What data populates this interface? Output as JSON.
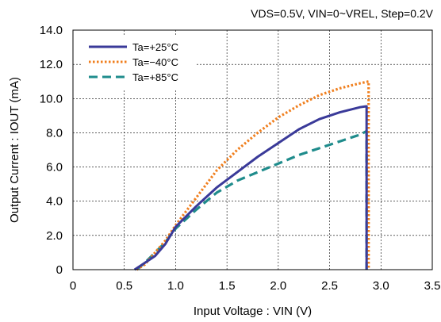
{
  "chart_data": {
    "type": "line",
    "title": "",
    "subtitle": "VDS=0.5V, VIN=0~VREL, Step=0.2V",
    "xlabel": "Input Voltage : VIN (V)",
    "ylabel": "Output Current : IOUT (mA)",
    "xlim": [
      0,
      3.5
    ],
    "ylim": [
      0,
      14.0
    ],
    "x_ticks": [
      "0",
      "0.5",
      "1.0",
      "1.5",
      "2.0",
      "2.5",
      "3.0",
      "3.5"
    ],
    "y_ticks": [
      "0",
      "2.0",
      "4.0",
      "6.0",
      "8.0",
      "10.0",
      "12.0",
      "14.0"
    ],
    "grid": true,
    "legend_position": "top-left",
    "series": [
      {
        "name": "Ta=+25°C",
        "color": "#3a3a99",
        "style": "solid",
        "x": [
          0.6,
          0.65,
          0.8,
          0.9,
          1.0,
          1.2,
          1.4,
          1.6,
          1.8,
          2.0,
          2.2,
          2.4,
          2.6,
          2.8,
          2.86,
          2.86
        ],
        "y": [
          0,
          0.2,
          0.8,
          1.5,
          2.5,
          3.7,
          4.8,
          5.7,
          6.6,
          7.4,
          8.2,
          8.8,
          9.2,
          9.5,
          9.55,
          0
        ]
      },
      {
        "name": "Ta=−40°C",
        "color": "#f07f1e",
        "style": "dotted",
        "x": [
          0.62,
          0.7,
          0.8,
          0.9,
          1.0,
          1.2,
          1.4,
          1.6,
          1.8,
          2.0,
          2.2,
          2.4,
          2.6,
          2.8,
          2.88,
          2.88
        ],
        "y": [
          0,
          0.3,
          1.0,
          1.7,
          2.6,
          4.2,
          5.8,
          7.0,
          8.0,
          8.9,
          9.6,
          10.2,
          10.6,
          10.9,
          11.0,
          0
        ]
      },
      {
        "name": "Ta=+85°C",
        "color": "#1f8c8c",
        "style": "dashed",
        "x": [
          0.62,
          0.7,
          0.8,
          0.9,
          1.0,
          1.2,
          1.4,
          1.6,
          1.8,
          2.0,
          2.2,
          2.4,
          2.6,
          2.8,
          2.86,
          2.86
        ],
        "y": [
          0,
          0.4,
          1.0,
          1.6,
          2.4,
          3.5,
          4.5,
          5.2,
          5.7,
          6.2,
          6.7,
          7.1,
          7.5,
          7.9,
          8.1,
          0
        ]
      }
    ]
  }
}
